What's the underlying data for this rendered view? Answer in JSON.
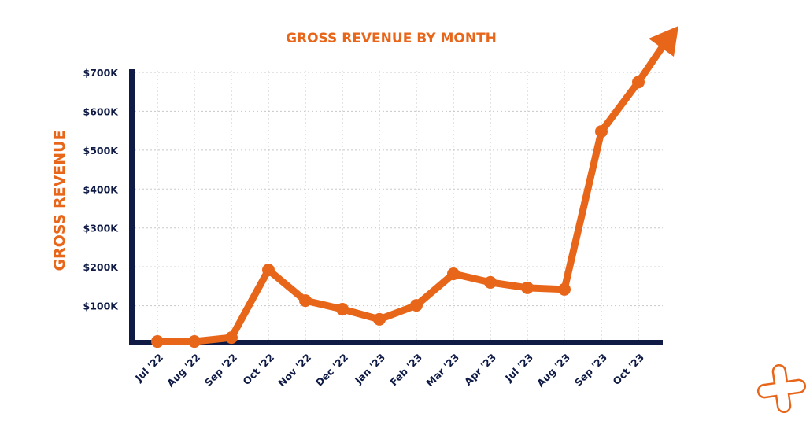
{
  "chart_data": {
    "type": "line",
    "title": "GROSS REVENUE BY MONTH",
    "xlabel": "",
    "ylabel": "GROSS REVENUE",
    "categories": [
      "Jul '22",
      "Aug '22",
      "Sep '22",
      "Oct '22",
      "Nov '22",
      "Dec '22",
      "Jan '23",
      "Feb '23",
      "Mar '23",
      "Apr '23",
      "Jul '23",
      "Aug '23",
      "Sep '23",
      "Oct '23"
    ],
    "series": [
      {
        "name": "Gross Revenue",
        "values": [
          8000,
          8000,
          18000,
          192000,
          113000,
          91000,
          65000,
          101000,
          182000,
          160000,
          146000,
          142000,
          548000,
          675000
        ]
      }
    ],
    "yticks": [
      100000,
      200000,
      300000,
      400000,
      500000,
      600000,
      700000
    ],
    "ytick_labels": [
      "$100K",
      "$200K",
      "$300K",
      "$400K",
      "$500K",
      "$600K",
      "$700K"
    ],
    "ylim": [
      0,
      700000
    ],
    "grid": true,
    "trend_arrow": true,
    "colors": {
      "line": "#e8661a",
      "axis": "#0f1b45",
      "grid": "#c8c8c8"
    }
  },
  "logo": {
    "icon": "plus-outline-icon",
    "color": "#e8661a"
  }
}
